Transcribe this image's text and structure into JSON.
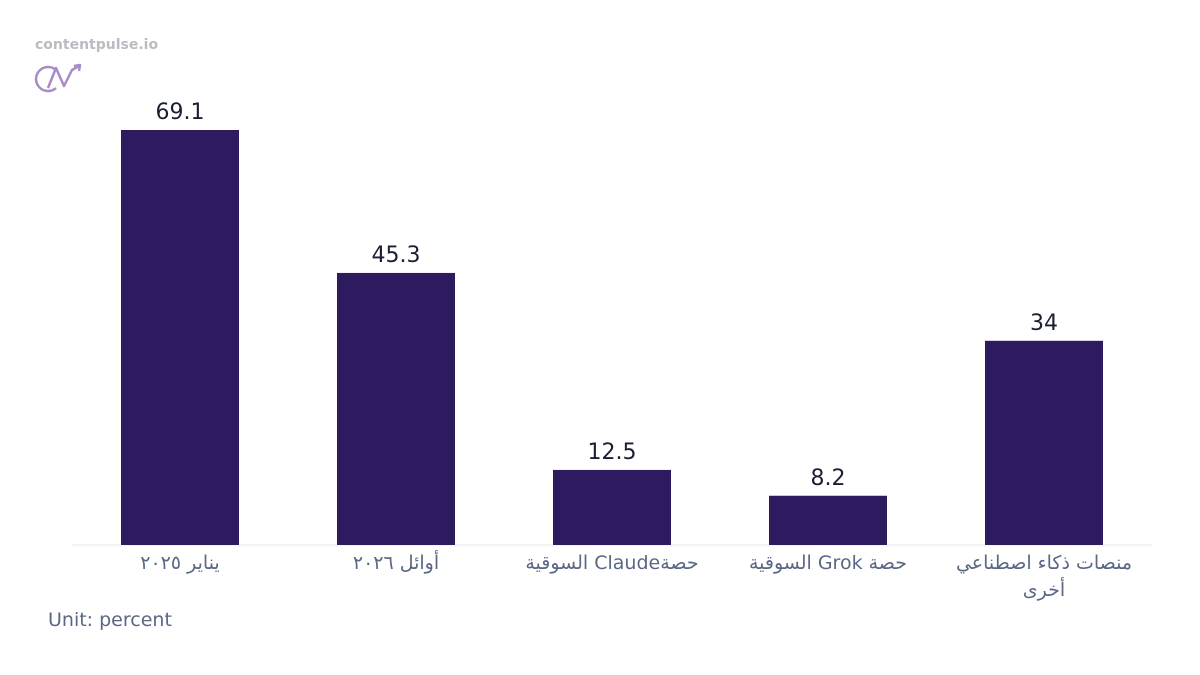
{
  "brand": "contentpulse.io",
  "chart_data": {
    "type": "bar",
    "categories": [
      "يناير ٢٠٢٥",
      "أوائل ٢٠٢٦",
      "حصةClaude السوقية",
      "حصة Grok السوقية",
      "منصات ذكاء اصطناعي أخرى"
    ],
    "values": [
      69.1,
      45.3,
      12.5,
      8.2,
      34
    ],
    "color": "#2d1a5f",
    "unit_note": "Unit: percent"
  }
}
